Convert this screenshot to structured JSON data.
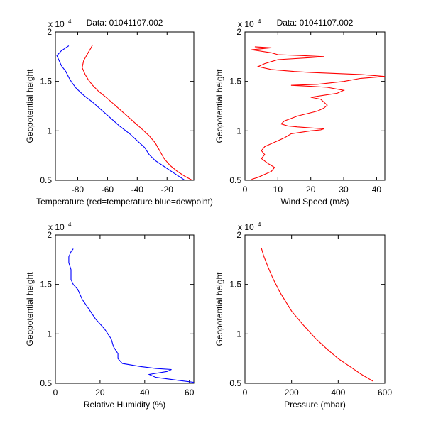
{
  "chart_data": [
    {
      "type": "line",
      "title": "Data: 01041107.002",
      "xlabel": "Temperature (red=temperature blue=dewpoint)",
      "ylabel": "Geopotential height",
      "y_exponent_label": "x 10",
      "y_exponent_power": "4",
      "xlim": [
        -95,
        -2
      ],
      "ylim": [
        5000,
        20000
      ],
      "xticks": [
        -80,
        -60,
        -40,
        -20
      ],
      "xtick_labels": [
        "-80",
        "-60",
        "-40",
        "-20"
      ],
      "yticks": [
        5000,
        10000,
        15000,
        20000
      ],
      "ytick_labels": [
        "0.5",
        "1",
        "1.5",
        "2"
      ],
      "series": [
        {
          "name": "temperature",
          "color": "#ff0000",
          "x": [
            -3,
            -8,
            -13,
            -18,
            -22,
            -25,
            -28,
            -32,
            -37,
            -43,
            -49,
            -55,
            -61,
            -66,
            -70,
            -73,
            -75,
            -77,
            -76,
            -73,
            -71,
            -70
          ],
          "y": [
            5000,
            5400,
            5900,
            6500,
            7200,
            8000,
            8800,
            9500,
            10200,
            11000,
            11800,
            12600,
            13400,
            14000,
            14600,
            15200,
            15700,
            16400,
            17100,
            17900,
            18400,
            18700
          ]
        },
        {
          "name": "dewpoint",
          "color": "#0000ff",
          "x": [
            -8,
            -12,
            -16,
            -22,
            -28,
            -32,
            -35,
            -40,
            -45,
            -52,
            -58,
            -64,
            -70,
            -76,
            -81,
            -84,
            -86,
            -88,
            -91,
            -94,
            -91,
            -88,
            -86
          ],
          "y": [
            5000,
            5400,
            5800,
            6400,
            7000,
            7600,
            8300,
            9000,
            9700,
            10500,
            11300,
            12100,
            12900,
            13600,
            14300,
            14900,
            15400,
            16000,
            16600,
            17600,
            18100,
            18400,
            18600
          ]
        }
      ]
    },
    {
      "type": "line",
      "title": "Data: 01041107.002",
      "xlabel": "Wind Speed (m/s)",
      "ylabel": "Geopotential height",
      "y_exponent_label": "x 10",
      "y_exponent_power": "4",
      "xlim": [
        0,
        42.5
      ],
      "ylim": [
        5000,
        20000
      ],
      "xticks": [
        0,
        10,
        20,
        30,
        40
      ],
      "xtick_labels": [
        "0",
        "10",
        "20",
        "30",
        "40"
      ],
      "yticks": [
        5000,
        10000,
        15000,
        20000
      ],
      "ytick_labels": [
        "0.5",
        "1",
        "1.5",
        "2"
      ],
      "series": [
        {
          "name": "wind speed",
          "color": "#ff0000",
          "x": [
            2,
            4,
            6,
            8,
            9,
            7,
            5,
            6,
            5,
            6,
            8,
            10,
            12,
            13,
            14,
            16,
            18,
            20,
            23,
            24,
            20,
            16,
            13,
            11,
            12,
            16,
            22,
            24,
            25,
            24,
            23,
            20,
            24,
            28,
            30,
            25,
            20,
            14,
            22,
            30,
            35,
            42.5,
            35,
            20,
            15,
            8,
            4,
            6,
            8,
            10,
            20,
            24,
            18,
            10,
            8,
            6,
            4,
            2,
            5,
            8,
            3
          ],
          "y": [
            5100,
            5300,
            5600,
            5900,
            6300,
            6700,
            7200,
            7600,
            8000,
            8400,
            8700,
            9000,
            9300,
            9500,
            9700,
            9800,
            9900,
            10000,
            10100,
            10200,
            10300,
            10400,
            10500,
            10700,
            11000,
            11500,
            12000,
            12300,
            12600,
            12900,
            13200,
            13400,
            13600,
            13800,
            14100,
            14400,
            14500,
            14600,
            14700,
            15000,
            15300,
            15500,
            15700,
            15900,
            16000,
            16200,
            16500,
            16800,
            17000,
            17200,
            17400,
            17500,
            17600,
            17700,
            17900,
            18000,
            18100,
            18200,
            18300,
            18400,
            18500
          ]
        }
      ]
    },
    {
      "type": "line",
      "title": "",
      "xlabel": "Relative Humidity (%)",
      "ylabel": "Geopotential height",
      "y_exponent_label": "x 10",
      "y_exponent_power": "4",
      "xlim": [
        0,
        62
      ],
      "ylim": [
        5000,
        20000
      ],
      "xticks": [
        0,
        20,
        40,
        60
      ],
      "xtick_labels": [
        "0",
        "20",
        "40",
        "60"
      ],
      "yticks": [
        5000,
        10000,
        15000,
        20000
      ],
      "ytick_labels": [
        "0.5",
        "1",
        "1.5",
        "2"
      ],
      "series": [
        {
          "name": "relative humidity",
          "color": "#0000ff",
          "x": [
            62,
            55,
            45,
            42,
            50,
            52,
            45,
            38,
            30,
            28,
            28,
            26,
            25,
            22,
            18,
            15,
            12,
            10,
            8,
            7,
            7,
            6,
            6,
            7,
            8
          ],
          "y": [
            5100,
            5300,
            5600,
            5900,
            6200,
            6400,
            6500,
            6700,
            7000,
            7500,
            8000,
            8700,
            9500,
            10500,
            11500,
            12500,
            13500,
            14500,
            15000,
            15500,
            16500,
            17200,
            17800,
            18300,
            18600
          ]
        }
      ]
    },
    {
      "type": "line",
      "title": "",
      "xlabel": "Pressure (mbar)",
      "ylabel": "Geopotential height",
      "y_exponent_label": "x 10",
      "y_exponent_power": "4",
      "xlim": [
        0,
        600
      ],
      "ylim": [
        5000,
        20000
      ],
      "xticks": [
        0,
        200,
        400,
        600
      ],
      "xtick_labels": [
        "0",
        "200",
        "400",
        "600"
      ],
      "yticks": [
        5000,
        10000,
        15000,
        20000
      ],
      "ytick_labels": [
        "0.5",
        "1",
        "1.5",
        "2"
      ],
      "series": [
        {
          "name": "pressure",
          "color": "#ff0000",
          "x": [
            550,
            500,
            450,
            400,
            350,
            300,
            250,
            200,
            150,
            120,
            100,
            80,
            70
          ],
          "y": [
            5200,
            5900,
            6700,
            7500,
            8500,
            9600,
            10900,
            12300,
            14200,
            15600,
            16700,
            17900,
            18700
          ]
        }
      ]
    }
  ]
}
